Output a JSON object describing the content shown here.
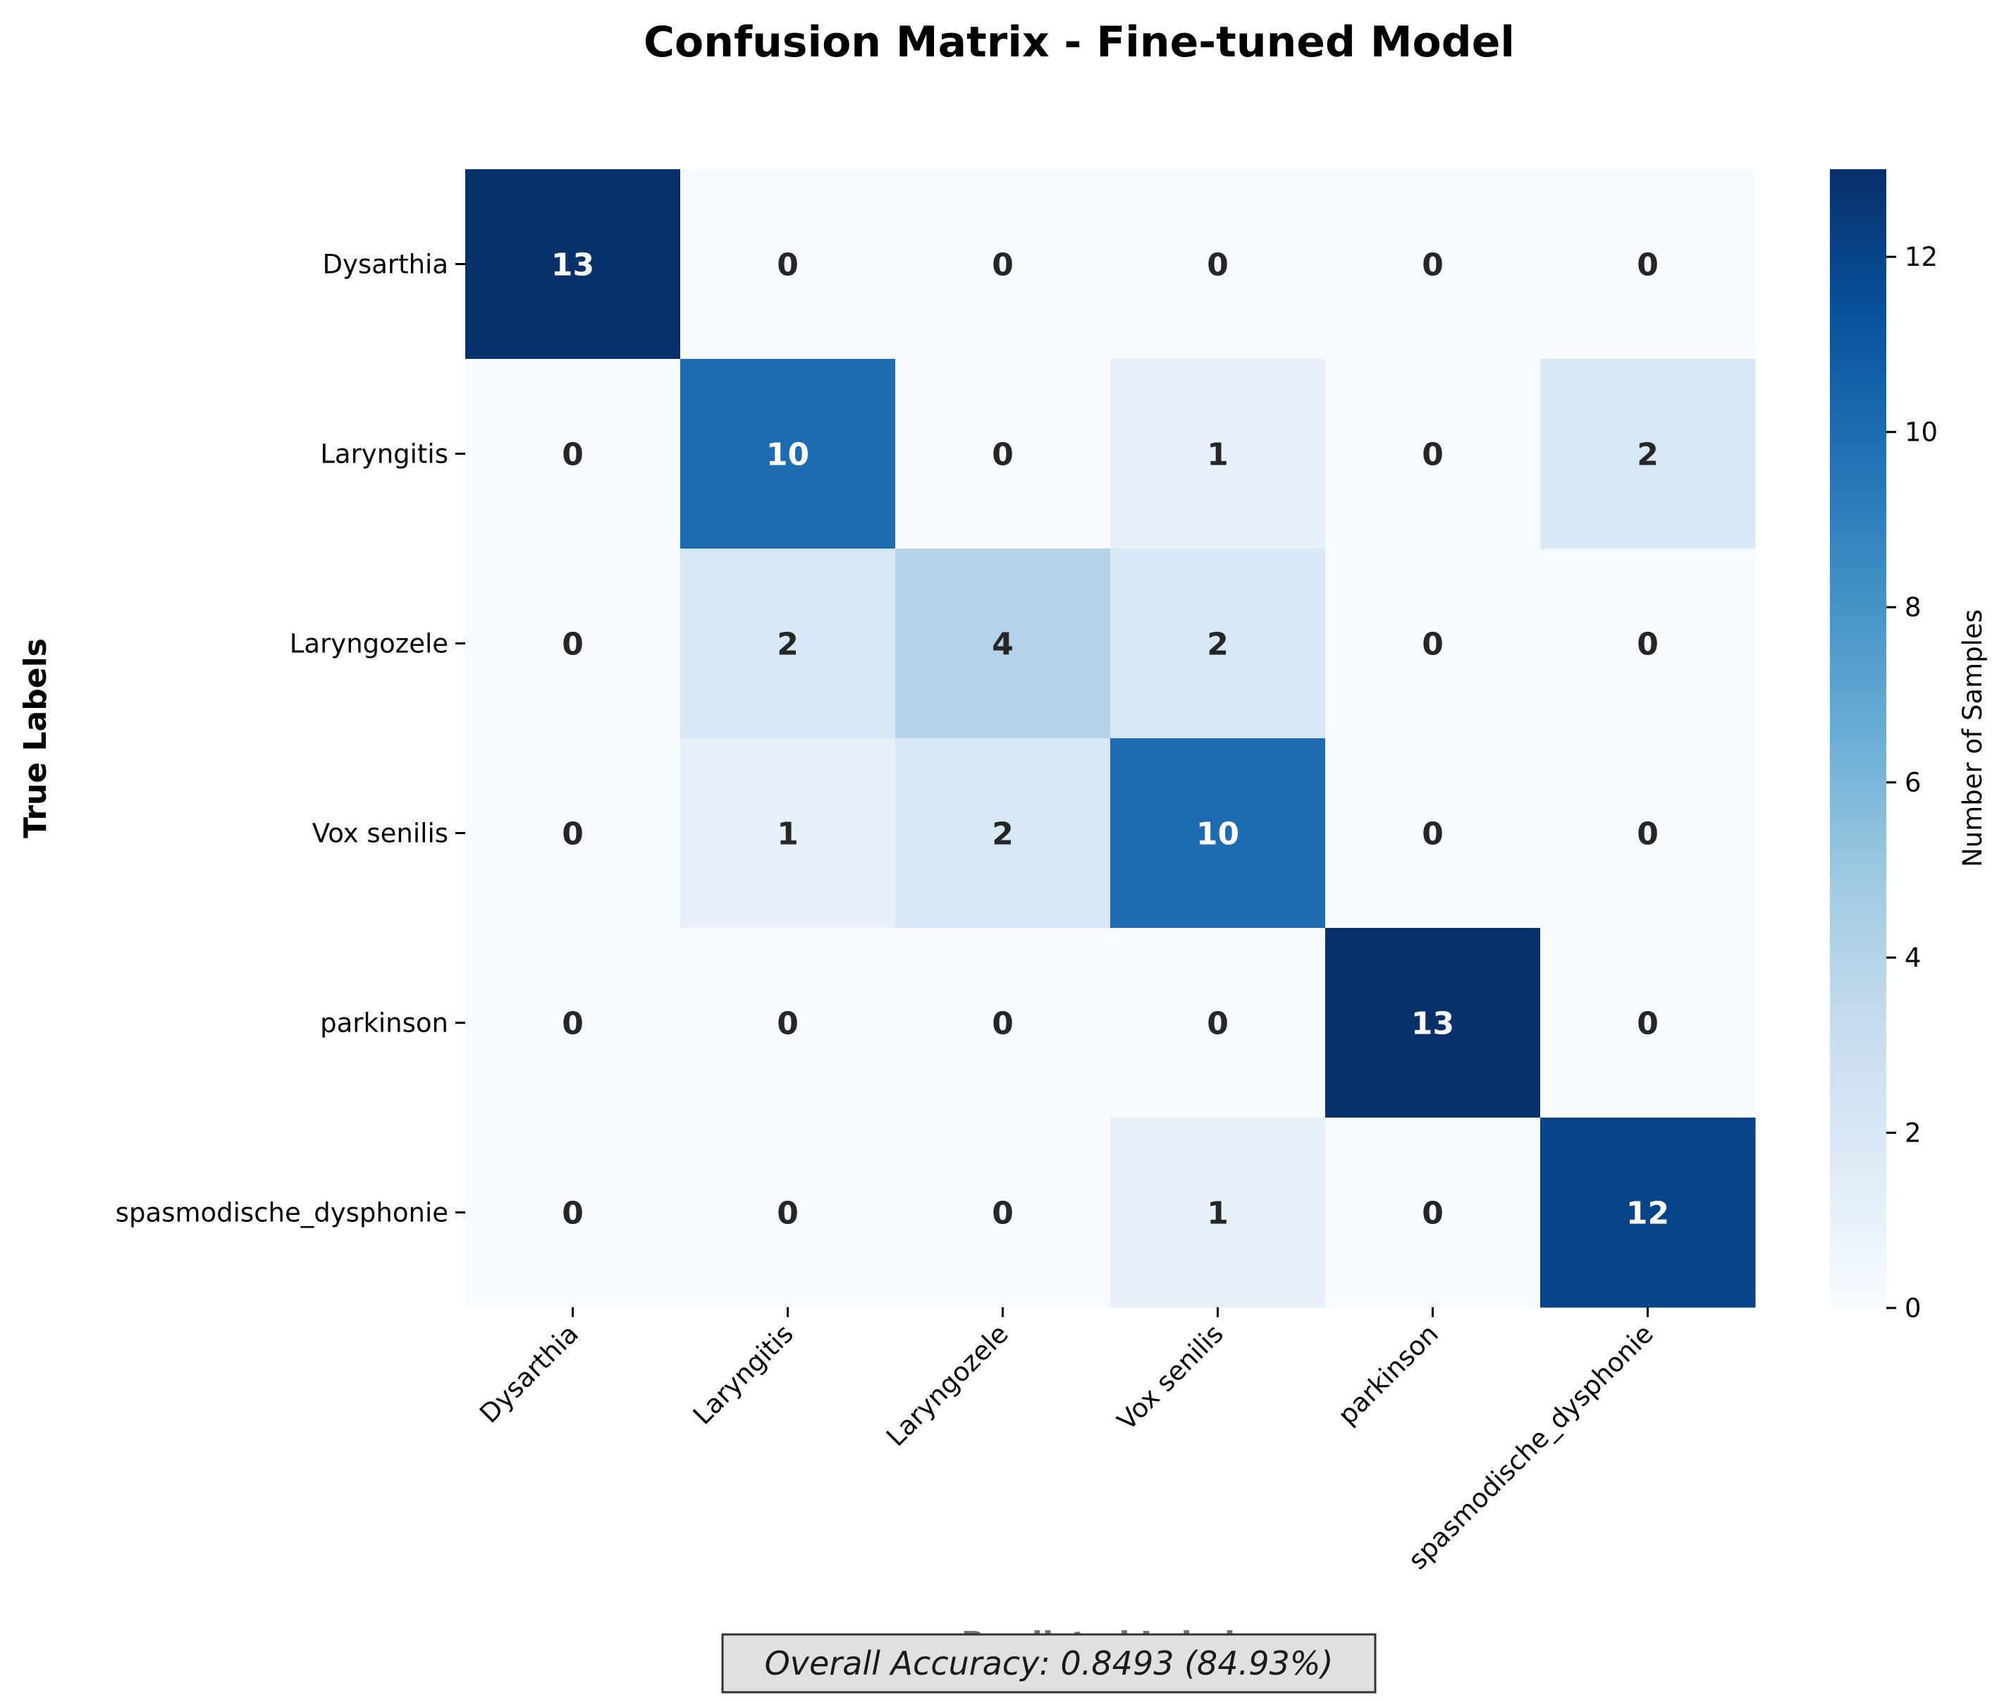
{
  "chart_data": {
    "type": "heatmap",
    "title": "Confusion Matrix - Fine-tuned Model",
    "xlabel": "Predicted Labels",
    "ylabel": "True Labels",
    "x_categories": [
      "Dysarthia",
      "Laryngitis",
      "Laryngozele",
      "Vox senilis",
      "parkinson",
      "spasmodische_dysphonie"
    ],
    "y_categories": [
      "Dysarthia",
      "Laryngitis",
      "Laryngozele",
      "Vox senilis",
      "parkinson",
      "spasmodische_dysphonie"
    ],
    "values": [
      [
        13,
        0,
        0,
        0,
        0,
        0
      ],
      [
        0,
        10,
        0,
        1,
        0,
        2
      ],
      [
        0,
        2,
        4,
        2,
        0,
        0
      ],
      [
        0,
        1,
        2,
        10,
        0,
        0
      ],
      [
        0,
        0,
        0,
        0,
        13,
        0
      ],
      [
        0,
        0,
        0,
        1,
        0,
        12
      ]
    ],
    "colormap": "Blues",
    "colorbar": {
      "label": "Number of Samples",
      "range": [
        0,
        13
      ],
      "ticks": [
        0,
        2,
        4,
        6,
        8,
        10,
        12
      ]
    },
    "annotation": "Overall Accuracy: 0.8493 (84.93%)"
  }
}
